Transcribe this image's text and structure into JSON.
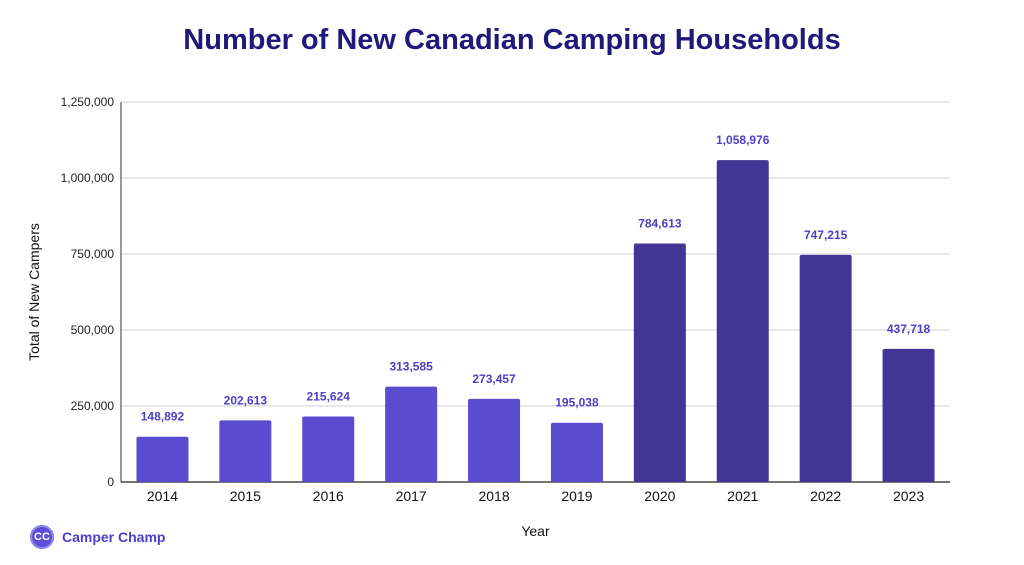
{
  "chart_data": {
    "type": "bar",
    "title": "Number of New Canadian Camping Households",
    "xlabel": "Year",
    "ylabel": "Total of New Campers",
    "ylim": [
      0,
      1250000
    ],
    "yticks": [
      0,
      250000,
      500000,
      750000,
      1000000,
      1250000
    ],
    "ytick_labels": [
      "0",
      "250,000",
      "500,000",
      "750,000",
      "1,000,000",
      "1,250,000"
    ],
    "grid": true,
    "categories": [
      "2014",
      "2015",
      "2016",
      "2017",
      "2018",
      "2019",
      "2020",
      "2021",
      "2022",
      "2023"
    ],
    "values": [
      148892,
      202613,
      215624,
      313585,
      273457,
      195038,
      784613,
      1058976,
      747215,
      437718
    ],
    "data_labels": [
      "148,892",
      "202,613",
      "215,624",
      "313,585",
      "273,457",
      "195,038",
      "784,613",
      "1,058,976",
      "747,215",
      "437,718"
    ],
    "bar_colors": [
      "#5b4bcf",
      "#5b4bcf",
      "#5b4bcf",
      "#5b4bcf",
      "#5b4bcf",
      "#5b4bcf",
      "#433596",
      "#433596",
      "#433596",
      "#433596"
    ],
    "label_color": "#4b3fc4"
  },
  "brand": {
    "logo_text": "CC",
    "name": "Camper Champ"
  }
}
